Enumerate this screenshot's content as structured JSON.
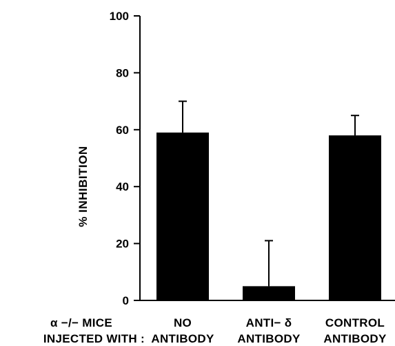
{
  "chart_data": {
    "type": "bar",
    "ylabel": "% INHIBITION",
    "ylim": [
      0,
      100
    ],
    "yticks": [
      "0",
      "20",
      "40",
      "60",
      "80",
      "100"
    ],
    "row_header": {
      "line1": "α −/− MICE",
      "line2": "INJECTED WITH :"
    },
    "categories": [
      {
        "line1": "NO",
        "line2": "ANTIBODY"
      },
      {
        "line1": "ANTI− δ",
        "line2": "ANTIBODY"
      },
      {
        "line1": "CONTROL",
        "line2": "ANTIBODY"
      }
    ],
    "values": [
      59,
      5,
      58
    ],
    "error_upper": [
      70,
      21,
      65
    ],
    "bar_color": "#000000",
    "grid": false
  }
}
